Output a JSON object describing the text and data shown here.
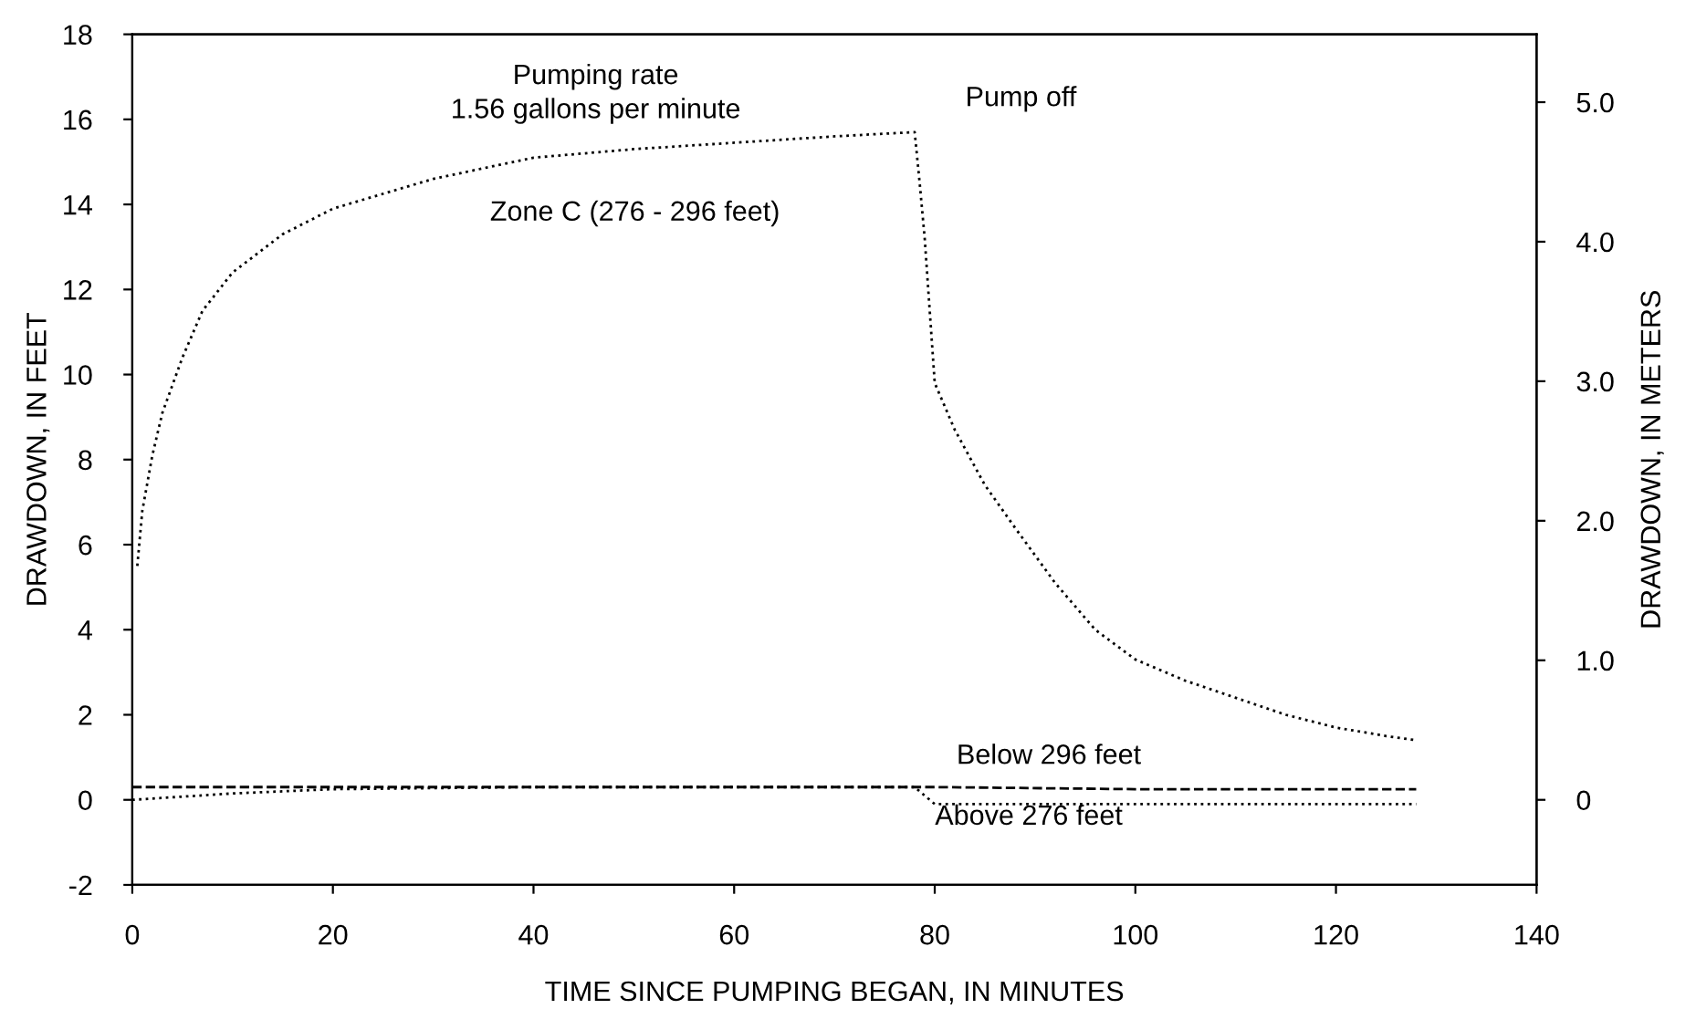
{
  "chart_data": {
    "type": "line",
    "xlabel": "TIME SINCE PUMPING BEGAN, IN MINUTES",
    "ylabel": "DRAWDOWN, IN FEET",
    "y2label": "DRAWDOWN, IN METERS",
    "xlim": [
      0,
      140
    ],
    "xticks": [
      0,
      20,
      40,
      60,
      80,
      100,
      120,
      140
    ],
    "ylim": [
      -2,
      18
    ],
    "yticks": [
      -2,
      0,
      2,
      4,
      6,
      8,
      10,
      12,
      14,
      16,
      18
    ],
    "y2lim": [
      -0.6096,
      5.4864
    ],
    "y2ticks": [
      0,
      {
        "value": 1,
        "label": "1.0"
      },
      {
        "value": 2,
        "label": "2.0"
      },
      {
        "value": 3,
        "label": "3.0"
      },
      {
        "value": 4,
        "label": "4.0"
      },
      {
        "value": 5,
        "label": "5.0"
      }
    ],
    "grid": false,
    "legend": false,
    "annotations": [
      "Pumping rate\n1.56 gallons per minute",
      {
        "text": "Pump off",
        "x": 78,
        "y": 15.7
      }
    ],
    "series": [
      {
        "name": "Zone C (276 - 296 feet)",
        "color": "#000000",
        "line_style": "dotted",
        "x": [
          0.5,
          1,
          2,
          3,
          5,
          7,
          10,
          15,
          20,
          30,
          40,
          50,
          60,
          70,
          78,
          78.5,
          79,
          79.5,
          80,
          82,
          85,
          88,
          92,
          96,
          100,
          105,
          110,
          115,
          120,
          125,
          128
        ],
        "values": [
          5.5,
          6.8,
          8.1,
          9.1,
          10.4,
          11.5,
          12.4,
          13.3,
          13.9,
          14.6,
          15.1,
          15.3,
          15.45,
          15.6,
          15.7,
          14.5,
          13.2,
          11.5,
          9.8,
          8.7,
          7.4,
          6.4,
          5.1,
          4.0,
          3.3,
          2.8,
          2.4,
          2.0,
          1.7,
          1.5,
          1.4
        ]
      },
      {
        "name": "Below 296 feet",
        "color": "#000000",
        "line_style": "dashed",
        "x": [
          0,
          20,
          40,
          60,
          78,
          80,
          100,
          128
        ],
        "values": [
          0.3,
          0.3,
          0.3,
          0.3,
          0.3,
          0.3,
          0.25,
          0.25
        ]
      },
      {
        "name": "Above 276 feet",
        "color": "#000000",
        "line_style": "dotted",
        "x": [
          0,
          10,
          20,
          40,
          60,
          78,
          80,
          100,
          128
        ],
        "values": [
          0,
          0.15,
          0.25,
          0.3,
          0.3,
          0.3,
          -0.1,
          -0.1,
          -0.1
        ]
      }
    ]
  }
}
